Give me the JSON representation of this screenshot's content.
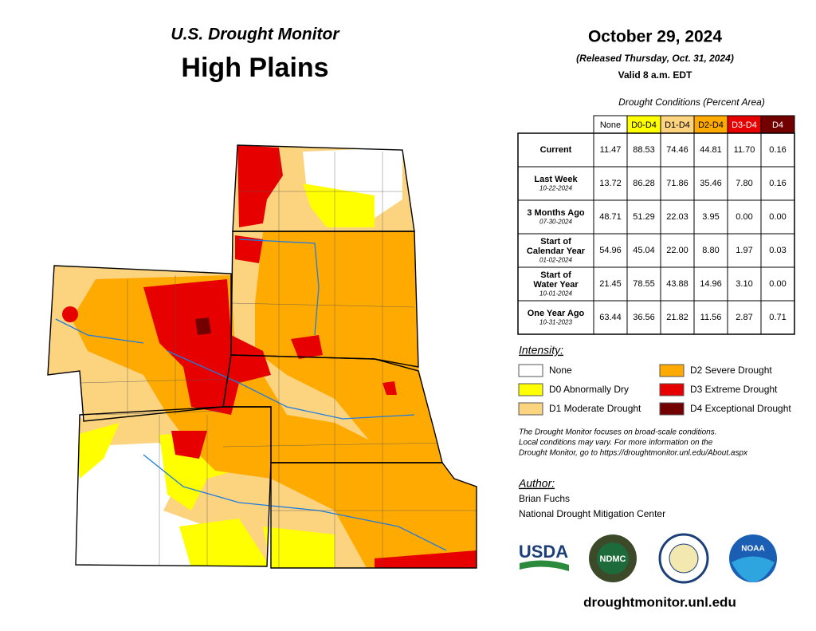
{
  "header": {
    "title": "U.S. Drought Monitor",
    "region": "High Plains",
    "date": "October 29, 2024",
    "released": "(Released Thursday, Oct. 31, 2024)",
    "valid": "Valid 8 a.m. EDT"
  },
  "table": {
    "caption": "Drought Conditions (Percent Area)",
    "columns": [
      "None",
      "D0-D4",
      "D1-D4",
      "D2-D4",
      "D3-D4",
      "D4"
    ],
    "rows": [
      {
        "label": "Current",
        "values": [
          "11.47",
          "88.53",
          "74.46",
          "44.81",
          "11.70",
          "0.16"
        ]
      },
      {
        "label": "Last Week",
        "date": "10-22-2024",
        "values": [
          "13.72",
          "86.28",
          "71.86",
          "35.46",
          "7.80",
          "0.16"
        ]
      },
      {
        "label": "3 Months Ago",
        "date": "07-30-2024",
        "values": [
          "48.71",
          "51.29",
          "22.03",
          "3.95",
          "0.00",
          "0.00"
        ]
      },
      {
        "label": "Start of Calendar Year",
        "date": "01-02-2024",
        "values": [
          "54.96",
          "45.04",
          "22.00",
          "8.80",
          "1.97",
          "0.03"
        ]
      },
      {
        "label": "Start of Water Year",
        "date": "10-01-2024",
        "values": [
          "21.45",
          "78.55",
          "43.88",
          "14.96",
          "3.10",
          "0.00"
        ]
      },
      {
        "label": "One Year Ago",
        "date": "10-31-2023",
        "values": [
          "63.44",
          "36.56",
          "21.82",
          "11.56",
          "2.87",
          "0.71"
        ]
      }
    ]
  },
  "legend": {
    "title": "Intensity:",
    "items": [
      {
        "label": "None",
        "color": "#ffffff"
      },
      {
        "label": "D0 Abnormally Dry",
        "color": "#ffff00"
      },
      {
        "label": "D1 Moderate Drought",
        "color": "#fcd37f"
      },
      {
        "label": "D2 Severe Drought",
        "color": "#ffaa00"
      },
      {
        "label": "D3 Extreme Drought",
        "color": "#e60000"
      },
      {
        "label": "D4 Exceptional Drought",
        "color": "#730000"
      }
    ]
  },
  "note": [
    "The Drought Monitor focuses on broad-scale conditions.",
    "Local conditions may vary. For more information on the",
    "Drought Monitor, go to https://droughtmonitor.unl.edu/About.aspx"
  ],
  "author": {
    "title": "Author:",
    "name": "Brian Fuchs",
    "org": "National Drought Mitigation Center"
  },
  "logos": [
    "USDA",
    "NDMC",
    "NOAA"
  ],
  "url": "droughtmonitor.unl.edu"
}
